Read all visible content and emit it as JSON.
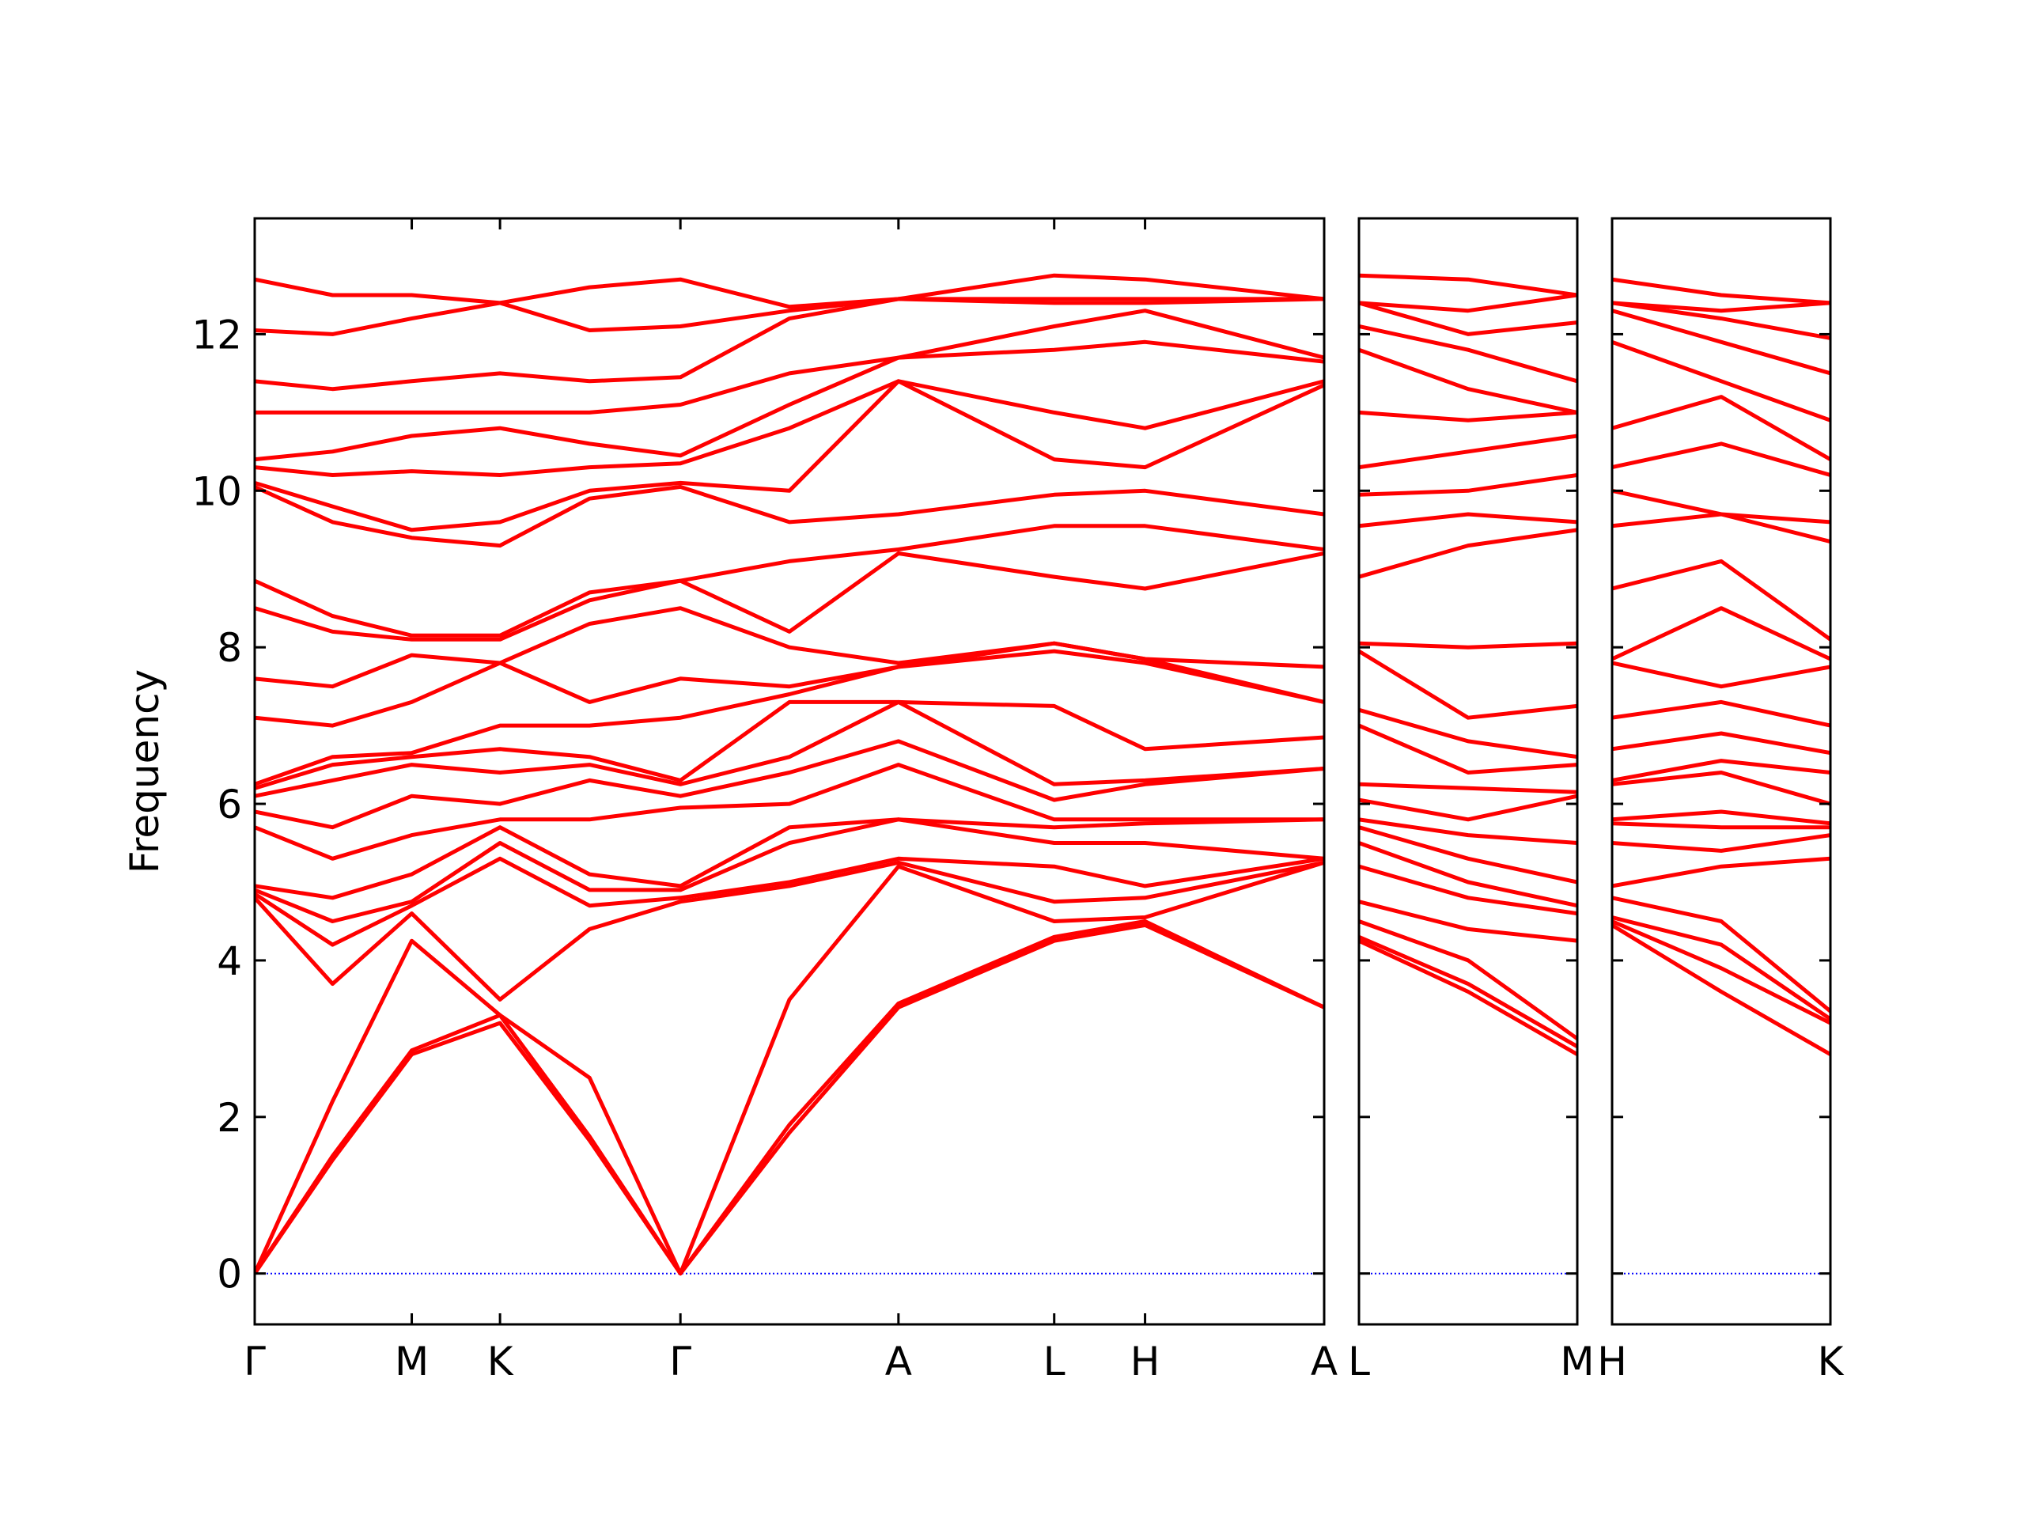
{
  "chart_data": [
    {
      "type": "line",
      "ylabel": "Frequency",
      "color": "#ff0000",
      "ytick_labels": true,
      "hline": {
        "y": 0,
        "color": "#0000ff"
      },
      "xlim": [
        0,
        8.24
      ],
      "ylim": [
        -0.65,
        13.48
      ],
      "yticks": [
        0,
        2,
        4,
        6,
        8,
        10,
        12
      ],
      "xticks": [
        {
          "value": 0,
          "label": "Γ"
        },
        {
          "value": 1.21,
          "label": "M"
        },
        {
          "value": 1.89,
          "label": "K"
        },
        {
          "value": 3.28,
          "label": "Γ"
        },
        {
          "value": 4.96,
          "label": "A"
        },
        {
          "value": 6.16,
          "label": "L"
        },
        {
          "value": 6.86,
          "label": "H"
        },
        {
          "value": 8.24,
          "label": "A"
        }
      ],
      "x": [
        0,
        0.6,
        1.21,
        1.89,
        2.58,
        3.28,
        4.12,
        4.96,
        6.16,
        6.86,
        8.24
      ],
      "series": [
        {
          "values": [
            0,
            1.45,
            2.8,
            3.2,
            1.7,
            0,
            1.8,
            3.4,
            4.25,
            4.45,
            3.4
          ]
        },
        {
          "values": [
            0,
            1.5,
            2.85,
            3.3,
            1.75,
            0,
            1.9,
            3.45,
            4.3,
            4.5,
            3.4
          ]
        },
        {
          "values": [
            0,
            2.2,
            4.25,
            3.3,
            2.5,
            0,
            3.5,
            5.2,
            4.5,
            4.55,
            5.25
          ]
        },
        {
          "values": [
            4.8,
            3.7,
            4.6,
            3.5,
            4.4,
            4.75,
            4.95,
            5.25,
            4.75,
            4.8,
            5.25
          ]
        },
        {
          "values": [
            4.85,
            4.2,
            4.7,
            5.3,
            4.7,
            4.8,
            5.0,
            5.3,
            5.2,
            4.95,
            5.3
          ]
        },
        {
          "values": [
            4.9,
            4.5,
            4.75,
            5.5,
            4.9,
            4.9,
            5.5,
            5.8,
            5.5,
            5.5,
            5.3
          ]
        },
        {
          "values": [
            4.95,
            4.8,
            5.1,
            5.7,
            5.1,
            4.95,
            5.7,
            5.8,
            5.7,
            5.75,
            5.8
          ]
        },
        {
          "values": [
            5.7,
            5.3,
            5.6,
            5.8,
            5.8,
            5.95,
            6.0,
            6.5,
            5.8,
            5.8,
            5.8
          ]
        },
        {
          "values": [
            5.9,
            5.7,
            6.1,
            6.0,
            6.3,
            6.1,
            6.4,
            6.8,
            6.05,
            6.25,
            6.45
          ]
        },
        {
          "values": [
            6.1,
            6.3,
            6.5,
            6.4,
            6.5,
            6.25,
            6.6,
            7.3,
            6.25,
            6.3,
            6.45
          ]
        },
        {
          "values": [
            6.2,
            6.5,
            6.6,
            6.7,
            6.6,
            6.3,
            7.3,
            7.3,
            7.25,
            6.7,
            6.85
          ]
        },
        {
          "values": [
            6.25,
            6.6,
            6.65,
            7.0,
            7.0,
            7.1,
            7.4,
            7.75,
            7.95,
            7.8,
            7.3
          ]
        },
        {
          "values": [
            7.1,
            7.0,
            7.3,
            7.8,
            7.3,
            7.6,
            7.5,
            7.75,
            8.05,
            7.85,
            7.3
          ]
        },
        {
          "values": [
            7.6,
            7.5,
            7.9,
            7.8,
            8.3,
            8.5,
            8.0,
            7.8,
            8.05,
            7.85,
            7.75
          ]
        },
        {
          "values": [
            8.5,
            8.2,
            8.1,
            8.1,
            8.6,
            8.85,
            8.2,
            9.2,
            8.9,
            8.75,
            9.2
          ]
        },
        {
          "values": [
            8.85,
            8.4,
            8.15,
            8.15,
            8.7,
            8.85,
            9.1,
            9.25,
            9.55,
            9.55,
            9.25
          ]
        },
        {
          "values": [
            10.05,
            9.6,
            9.4,
            9.3,
            9.9,
            10.05,
            9.6,
            9.7,
            9.95,
            10.0,
            9.7
          ]
        },
        {
          "values": [
            10.1,
            9.8,
            9.5,
            9.6,
            10.0,
            10.1,
            10.0,
            11.4,
            10.4,
            10.3,
            11.35
          ]
        },
        {
          "values": [
            10.3,
            10.2,
            10.25,
            10.2,
            10.3,
            10.35,
            10.8,
            11.4,
            11.0,
            10.8,
            11.4
          ]
        },
        {
          "values": [
            10.4,
            10.5,
            10.7,
            10.8,
            10.6,
            10.45,
            11.1,
            11.7,
            11.8,
            11.9,
            11.65
          ]
        },
        {
          "values": [
            11.0,
            11.0,
            11.0,
            11.0,
            11.0,
            11.1,
            11.5,
            11.7,
            12.1,
            12.3,
            11.7
          ]
        },
        {
          "values": [
            11.4,
            11.3,
            11.4,
            11.5,
            11.4,
            11.45,
            12.2,
            12.45,
            12.4,
            12.4,
            12.45
          ]
        },
        {
          "values": [
            12.05,
            12.0,
            12.2,
            12.4,
            12.05,
            12.1,
            12.3,
            12.45,
            12.45,
            12.45,
            12.45
          ]
        },
        {
          "values": [
            12.7,
            12.5,
            12.5,
            12.4,
            12.6,
            12.7,
            12.35,
            12.45,
            12.75,
            12.7,
            12.45
          ]
        }
      ]
    },
    {
      "type": "line",
      "color": "#ff0000",
      "ytick_labels": false,
      "hline": {
        "y": 0,
        "color": "#0000ff"
      },
      "xlim": [
        0,
        1.68
      ],
      "ylim": [
        -0.65,
        13.48
      ],
      "yticks": [
        0,
        2,
        4,
        6,
        8,
        10,
        12
      ],
      "xticks": [
        {
          "value": 0,
          "label": "L"
        },
        {
          "value": 1.68,
          "label": "M"
        }
      ],
      "x": [
        0,
        0.84,
        1.68
      ],
      "series": [
        {
          "values": [
            4.25,
            3.6,
            2.8
          ]
        },
        {
          "values": [
            4.3,
            3.7,
            2.9
          ]
        },
        {
          "values": [
            4.5,
            4.0,
            3.0
          ]
        },
        {
          "values": [
            4.75,
            4.4,
            4.25
          ]
        },
        {
          "values": [
            5.2,
            4.8,
            4.6
          ]
        },
        {
          "values": [
            5.5,
            5.0,
            4.7
          ]
        },
        {
          "values": [
            5.7,
            5.3,
            5.0
          ]
        },
        {
          "values": [
            5.8,
            5.6,
            5.5
          ]
        },
        {
          "values": [
            6.05,
            5.8,
            6.1
          ]
        },
        {
          "values": [
            6.25,
            6.2,
            6.15
          ]
        },
        {
          "values": [
            7.0,
            6.4,
            6.5
          ]
        },
        {
          "values": [
            7.2,
            6.8,
            6.6
          ]
        },
        {
          "values": [
            7.95,
            7.1,
            7.25
          ]
        },
        {
          "values": [
            8.05,
            8.0,
            8.05
          ]
        },
        {
          "values": [
            8.9,
            9.3,
            9.5
          ]
        },
        {
          "values": [
            9.55,
            9.7,
            9.6
          ]
        },
        {
          "values": [
            9.95,
            10.0,
            10.2
          ]
        },
        {
          "values": [
            10.3,
            10.5,
            10.7
          ]
        },
        {
          "values": [
            11.0,
            10.9,
            11.0
          ]
        },
        {
          "values": [
            11.8,
            11.3,
            11.0
          ]
        },
        {
          "values": [
            12.1,
            11.8,
            11.4
          ]
        },
        {
          "values": [
            12.4,
            12.0,
            12.15
          ]
        },
        {
          "values": [
            12.4,
            12.3,
            12.5
          ]
        },
        {
          "values": [
            12.75,
            12.7,
            12.5
          ]
        }
      ]
    },
    {
      "type": "line",
      "color": "#ff0000",
      "ytick_labels": false,
      "hline": {
        "y": 0,
        "color": "#0000ff"
      },
      "xlim": [
        0,
        1.68
      ],
      "ylim": [
        -0.65,
        13.48
      ],
      "yticks": [
        0,
        2,
        4,
        6,
        8,
        10,
        12
      ],
      "xticks": [
        {
          "value": 0,
          "label": "H"
        },
        {
          "value": 1.68,
          "label": "K"
        }
      ],
      "x": [
        0,
        0.84,
        1.68
      ],
      "series": [
        {
          "values": [
            4.45,
            3.6,
            2.8
          ]
        },
        {
          "values": [
            4.5,
            3.9,
            3.2
          ]
        },
        {
          "values": [
            4.55,
            4.2,
            3.25
          ]
        },
        {
          "values": [
            4.8,
            4.5,
            3.35
          ]
        },
        {
          "values": [
            4.95,
            5.2,
            5.3
          ]
        },
        {
          "values": [
            5.5,
            5.4,
            5.6
          ]
        },
        {
          "values": [
            5.75,
            5.7,
            5.7
          ]
        },
        {
          "values": [
            5.8,
            5.9,
            5.75
          ]
        },
        {
          "values": [
            6.25,
            6.4,
            6.0
          ]
        },
        {
          "values": [
            6.3,
            6.55,
            6.4
          ]
        },
        {
          "values": [
            6.7,
            6.9,
            6.65
          ]
        },
        {
          "values": [
            7.1,
            7.3,
            7.0
          ]
        },
        {
          "values": [
            7.8,
            7.5,
            7.75
          ]
        },
        {
          "values": [
            7.85,
            8.5,
            7.85
          ]
        },
        {
          "values": [
            8.75,
            9.1,
            8.1
          ]
        },
        {
          "values": [
            9.55,
            9.7,
            9.35
          ]
        },
        {
          "values": [
            10.0,
            9.7,
            9.6
          ]
        },
        {
          "values": [
            10.3,
            10.6,
            10.2
          ]
        },
        {
          "values": [
            10.8,
            11.2,
            10.4
          ]
        },
        {
          "values": [
            11.9,
            11.4,
            10.9
          ]
        },
        {
          "values": [
            12.3,
            11.9,
            11.5
          ]
        },
        {
          "values": [
            12.4,
            12.2,
            11.95
          ]
        },
        {
          "values": [
            12.4,
            12.3,
            12.4
          ]
        },
        {
          "values": [
            12.7,
            12.5,
            12.4
          ]
        }
      ]
    }
  ]
}
